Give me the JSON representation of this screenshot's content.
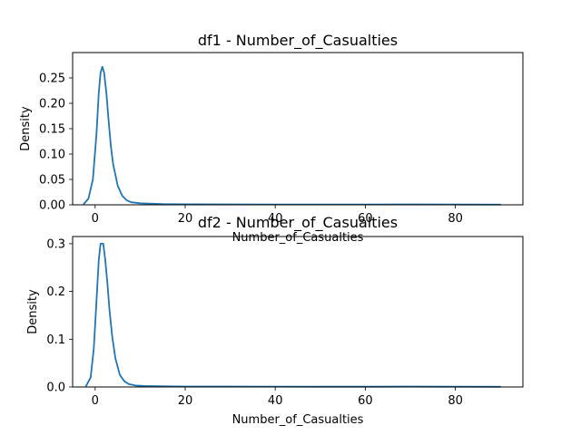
{
  "chart_data": [
    {
      "type": "line",
      "title": "df1 - Number_of_Casualties",
      "xlabel": "Number_of_Casualties",
      "ylabel": "Density",
      "xlim": [
        -5,
        95
      ],
      "ylim": [
        0,
        0.3
      ],
      "xticks": [
        "0",
        "20",
        "40",
        "60",
        "80"
      ],
      "yticks": [
        "0.00",
        "0.05",
        "0.10",
        "0.15",
        "0.20",
        "0.25"
      ],
      "grid": false,
      "series": [
        {
          "color": "#1f77b4",
          "x": [
            -2.5,
            -1.5,
            -0.5,
            0.3,
            0.8,
            1.2,
            1.6,
            2.0,
            2.5,
            3.0,
            3.5,
            4.0,
            5.0,
            6.0,
            7.0,
            8.0,
            10.0,
            12.0,
            15.0,
            20.0,
            30.0,
            40.0,
            50.0,
            60.0,
            70.0,
            80.0,
            90.0
          ],
          "y": [
            0.002,
            0.012,
            0.05,
            0.14,
            0.22,
            0.26,
            0.272,
            0.26,
            0.22,
            0.165,
            0.115,
            0.08,
            0.038,
            0.018,
            0.009,
            0.005,
            0.003,
            0.0025,
            0.0015,
            0.001,
            0.0008,
            0.0007,
            0.0006,
            0.0006,
            0.0008,
            0.0006,
            0.0004
          ]
        }
      ]
    },
    {
      "type": "line",
      "title": "df2 - Number_of_Casualties",
      "xlabel": "Number_of_Casualties",
      "ylabel": "Density",
      "xlim": [
        -5,
        95
      ],
      "ylim": [
        0,
        0.315
      ],
      "xticks": [
        "0",
        "20",
        "40",
        "60",
        "80"
      ],
      "yticks": [
        "0.0",
        "0.1",
        "0.2",
        "0.3"
      ],
      "grid": false,
      "series": [
        {
          "color": "#1f77b4",
          "x": [
            -2.0,
            -1.0,
            -0.3,
            0.3,
            0.8,
            1.2,
            1.8,
            2.2,
            2.7,
            3.2,
            3.8,
            4.5,
            5.5,
            6.5,
            7.5,
            9.0,
            11.0,
            14.0,
            20.0,
            30.0,
            40.0,
            50.0,
            60.0,
            70.0,
            80.0,
            90.0
          ],
          "y": [
            0.002,
            0.02,
            0.08,
            0.18,
            0.265,
            0.3,
            0.3,
            0.27,
            0.22,
            0.16,
            0.105,
            0.06,
            0.025,
            0.012,
            0.006,
            0.003,
            0.002,
            0.0015,
            0.001,
            0.0008,
            0.0007,
            0.0006,
            0.0006,
            0.0008,
            0.0006,
            0.0004
          ]
        }
      ]
    }
  ]
}
